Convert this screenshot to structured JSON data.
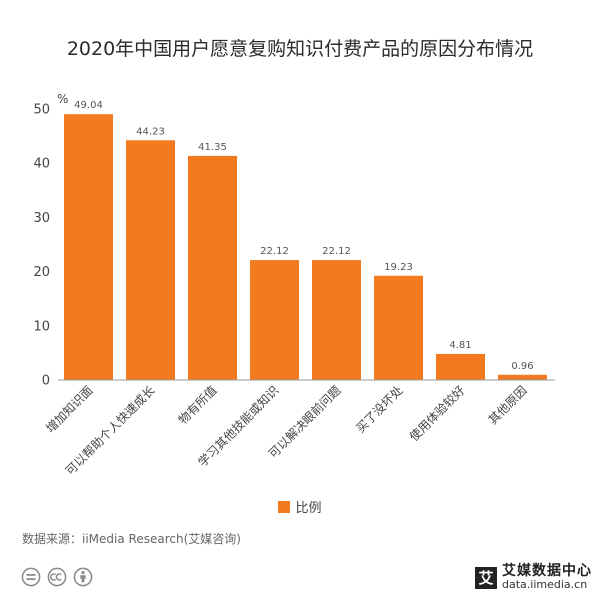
{
  "chart_data": {
    "type": "bar",
    "title": "2020年中国用户愿意复购知识付费产品的原因分布情况",
    "xlabel": "",
    "ylabel": "%",
    "categories": [
      "增加知识面",
      "可以帮助个人快速成长",
      "物有所值",
      "学习其他技能或知识",
      "可以解决眼前问题",
      "买了没坏处",
      "使用体验较好",
      "其他原因"
    ],
    "series": [
      {
        "name": "比例",
        "values": [
          49.04,
          44.23,
          41.35,
          22.12,
          22.12,
          19.23,
          4.81,
          0.96
        ]
      }
    ],
    "ylim": [
      0,
      50
    ],
    "yticks": [
      0,
      10,
      20,
      30,
      40,
      50
    ],
    "grid": false,
    "legend": "bottom-center",
    "color": "#F47A20"
  },
  "source": "数据来源：iiMedia Research(艾媒咨询)",
  "license_icons": [
    "equals-icon",
    "cc-icon",
    "person-icon"
  ],
  "logo": {
    "mark": "艾",
    "name": "艾媒数据中心",
    "site": "data.iimedia.cn"
  }
}
